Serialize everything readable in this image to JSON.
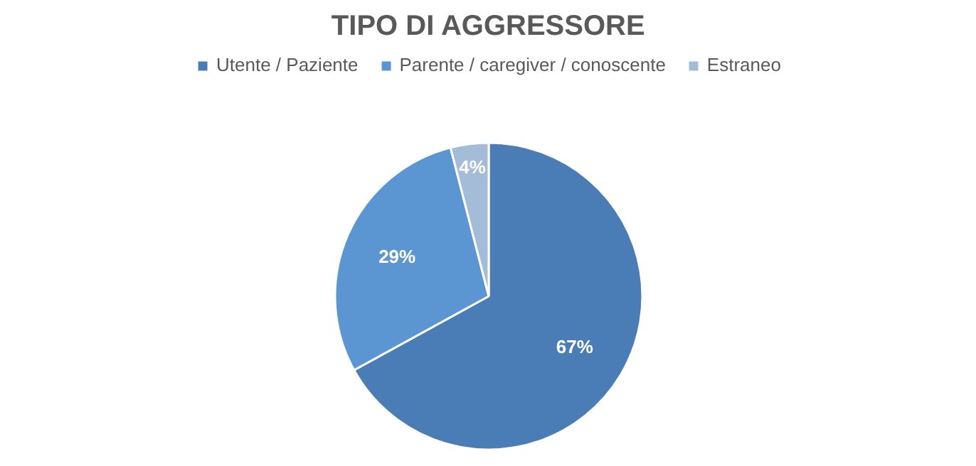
{
  "chart_data": {
    "type": "pie",
    "title": "TIPO DI AGGRESSORE",
    "categories": [
      "Utente / Paziente",
      "Parente / caregiver / conoscente",
      "Estraneo"
    ],
    "values": [
      67,
      29,
      4
    ],
    "colors": [
      "#4a7db5",
      "#5b95d2",
      "#a5bcd9"
    ],
    "value_labels": [
      "67%",
      "29%",
      "4%"
    ],
    "legend": "top"
  }
}
